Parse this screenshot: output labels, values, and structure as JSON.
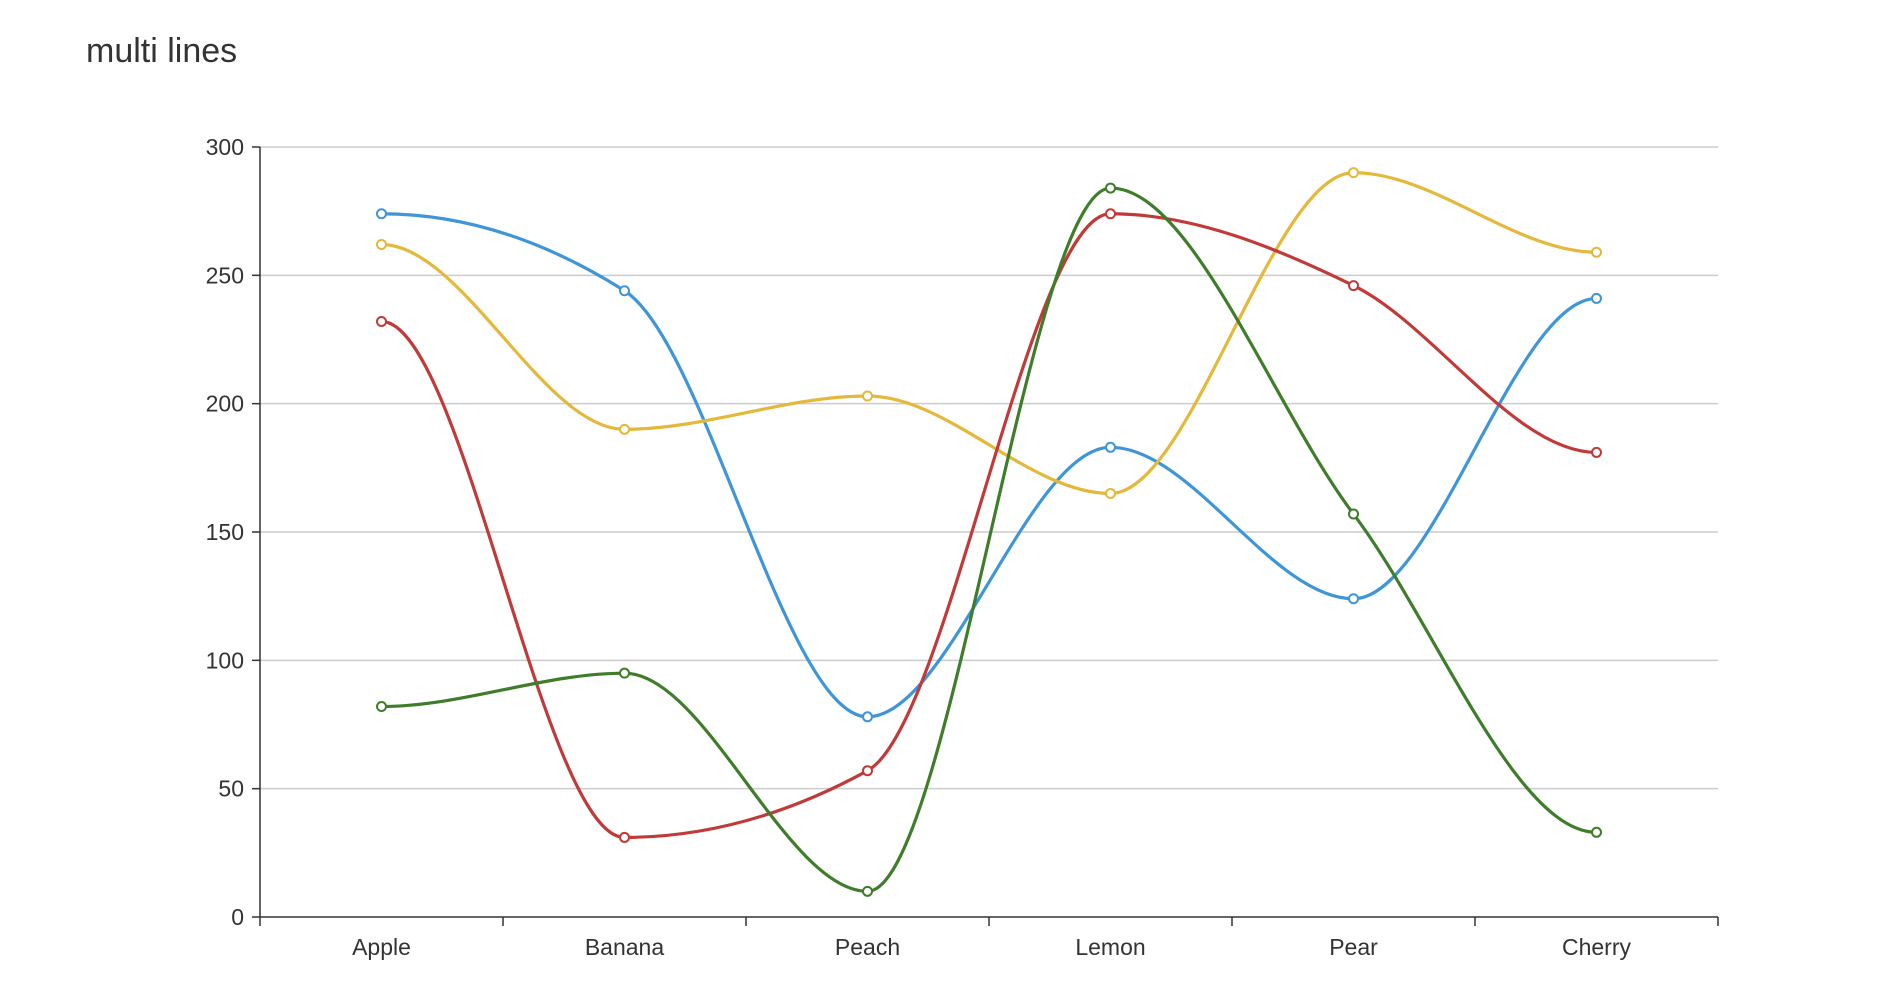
{
  "chart_data": {
    "type": "line",
    "title": "multi lines",
    "xlabel": "",
    "ylabel": "",
    "categories": [
      "Apple",
      "Banana",
      "Peach",
      "Lemon",
      "Pear",
      "Cherry"
    ],
    "ylim": [
      0,
      300
    ],
    "yticks": [
      "0",
      "50",
      "100",
      "150",
      "200",
      "250",
      "300"
    ],
    "grid": true,
    "legend": "none",
    "smooth": true,
    "series": [
      {
        "color": "#3e95d8",
        "values": [
          274,
          244,
          78,
          183,
          124,
          241
        ]
      },
      {
        "color": "#e3b83b",
        "values": [
          262,
          190,
          203,
          165,
          290,
          259
        ]
      },
      {
        "color": "#c13a39",
        "values": [
          232,
          31,
          57,
          274,
          246,
          181
        ]
      },
      {
        "color": "#3f7d2b",
        "values": [
          82,
          95,
          10,
          284,
          157,
          33
        ]
      }
    ]
  }
}
